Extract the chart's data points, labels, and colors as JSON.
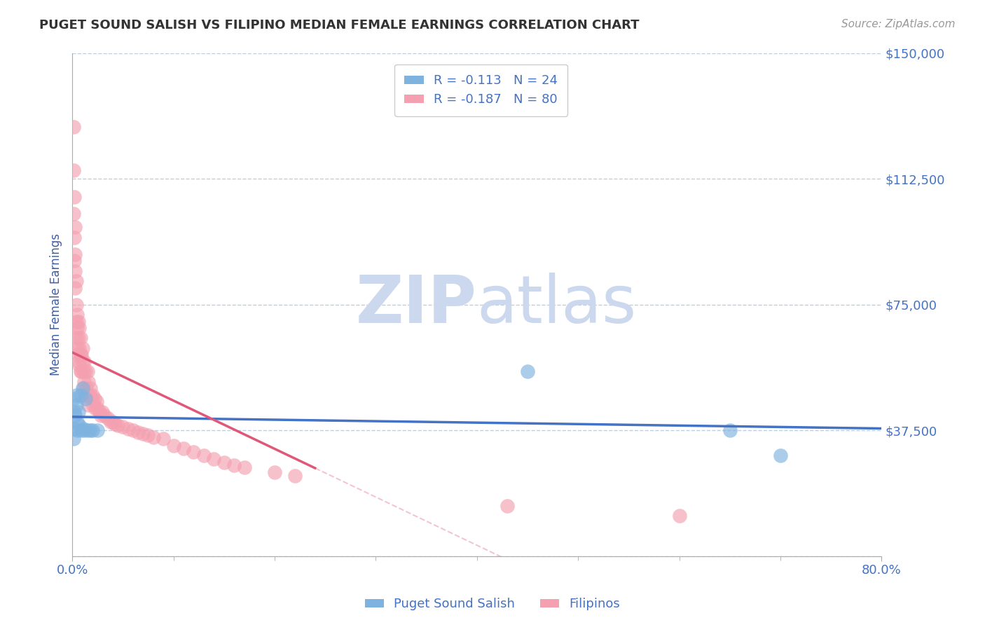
{
  "title": "PUGET SOUND SALISH VS FILIPINO MEDIAN FEMALE EARNINGS CORRELATION CHART",
  "source": "Source: ZipAtlas.com",
  "xlabel": "",
  "ylabel": "Median Female Earnings",
  "xlim": [
    0.0,
    0.8
  ],
  "ylim": [
    0,
    150000
  ],
  "yticks": [
    0,
    37500,
    75000,
    112500,
    150000
  ],
  "ytick_labels": [
    "",
    "$37,500",
    "$75,000",
    "$112,500",
    "$150,000"
  ],
  "xticks": [
    0.0,
    0.8
  ],
  "xtick_labels": [
    "0.0%",
    "80.0%"
  ],
  "legend_salish": "R = -0.113   N = 24",
  "legend_filipino": "R = -0.187   N = 80",
  "color_salish": "#7eb3e0",
  "color_filipino": "#f4a0b0",
  "line_color_salish": "#4472c4",
  "line_color_filipino": "#e05878",
  "watermark_top": "ZIP",
  "watermark_bottom": "atlas",
  "watermark_color": "#ccd8ee",
  "title_color": "#333333",
  "axis_label_color": "#4060a0",
  "tick_color": "#4472c4",
  "grid_color": "#c0cfe0",
  "salish_x": [
    0.001,
    0.001,
    0.002,
    0.002,
    0.003,
    0.004,
    0.004,
    0.005,
    0.005,
    0.006,
    0.007,
    0.008,
    0.009,
    0.01,
    0.011,
    0.012,
    0.013,
    0.015,
    0.018,
    0.02,
    0.025,
    0.45,
    0.65,
    0.7
  ],
  "salish_y": [
    47000,
    35000,
    43000,
    38000,
    42000,
    48000,
    45000,
    40000,
    37500,
    43000,
    39000,
    48000,
    37500,
    50000,
    38000,
    37500,
    47000,
    37500,
    37500,
    37500,
    37500,
    55000,
    37500,
    30000
  ],
  "filipino_x": [
    0.001,
    0.001,
    0.001,
    0.002,
    0.002,
    0.002,
    0.003,
    0.003,
    0.003,
    0.003,
    0.004,
    0.004,
    0.004,
    0.004,
    0.005,
    0.005,
    0.005,
    0.005,
    0.006,
    0.006,
    0.006,
    0.007,
    0.007,
    0.007,
    0.008,
    0.008,
    0.008,
    0.009,
    0.009,
    0.01,
    0.01,
    0.011,
    0.011,
    0.012,
    0.012,
    0.013,
    0.013,
    0.014,
    0.015,
    0.015,
    0.016,
    0.016,
    0.017,
    0.018,
    0.019,
    0.02,
    0.021,
    0.022,
    0.023,
    0.024,
    0.025,
    0.027,
    0.028,
    0.03,
    0.032,
    0.035,
    0.038,
    0.04,
    0.042,
    0.045,
    0.05,
    0.055,
    0.06,
    0.065,
    0.07,
    0.075,
    0.08,
    0.09,
    0.1,
    0.11,
    0.12,
    0.13,
    0.14,
    0.15,
    0.16,
    0.17,
    0.2,
    0.22,
    0.43,
    0.6
  ],
  "filipino_y": [
    128000,
    115000,
    102000,
    107000,
    95000,
    88000,
    98000,
    90000,
    85000,
    80000,
    82000,
    75000,
    70000,
    65000,
    72000,
    68000,
    62000,
    60000,
    70000,
    65000,
    58000,
    68000,
    62000,
    57000,
    65000,
    60000,
    55000,
    60000,
    55000,
    62000,
    58000,
    55000,
    50000,
    58000,
    52000,
    55000,
    48000,
    50000,
    55000,
    48000,
    52000,
    45000,
    48000,
    50000,
    47000,
    48000,
    45000,
    47000,
    44000,
    46000,
    44000,
    43000,
    42000,
    43000,
    42000,
    41000,
    40000,
    40000,
    39500,
    39000,
    38500,
    38000,
    37500,
    37000,
    36500,
    36000,
    35500,
    35000,
    33000,
    32000,
    31000,
    30000,
    29000,
    28000,
    27000,
    26500,
    25000,
    24000,
    15000,
    12000
  ]
}
